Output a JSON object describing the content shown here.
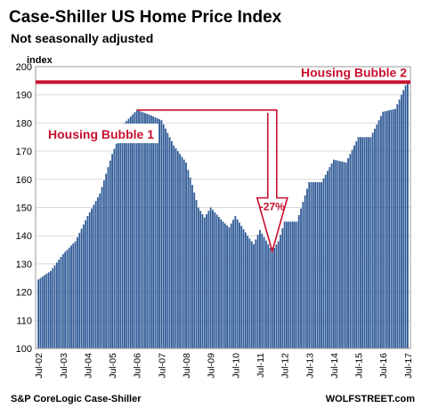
{
  "chart_data": {
    "type": "bar",
    "title": "Case-Shiller US Home Price Index",
    "subtitle": "Not seasonally adjusted",
    "ylabel": "index",
    "ylim": [
      100,
      200
    ],
    "yticks": [
      100,
      110,
      120,
      130,
      140,
      150,
      160,
      170,
      180,
      190,
      200
    ],
    "x_tick_labels": [
      "Jul-02",
      "Jul-03",
      "Jul-04",
      "Jul-05",
      "Jul-06",
      "Jul-07",
      "Jul-08",
      "Jul-09",
      "Jul-10",
      "Jul-11",
      "Jul-12",
      "Jul-13",
      "Jul-14",
      "Jul-15",
      "Jul-16",
      "Jul-17"
    ],
    "x_range": [
      "Jul-02",
      "Jul-17"
    ],
    "grid": true,
    "bar_color": "#2e5a96",
    "accent_color": "#c8102e",
    "source": "S&P CoreLogic Case-Shiller",
    "watermark": "WOLFSTREET.com",
    "keypoints": [
      {
        "date": "2002-07",
        "value": 124.5
      },
      {
        "date": "2003-01",
        "value": 127.5
      },
      {
        "date": "2003-07",
        "value": 133.5
      },
      {
        "date": "2004-01",
        "value": 138
      },
      {
        "date": "2004-07",
        "value": 147
      },
      {
        "date": "2005-01",
        "value": 155
      },
      {
        "date": "2005-07",
        "value": 169
      },
      {
        "date": "2006-01",
        "value": 180
      },
      {
        "date": "2006-07",
        "value": 184.6
      },
      {
        "date": "2007-01",
        "value": 183
      },
      {
        "date": "2007-07",
        "value": 181
      },
      {
        "date": "2008-01",
        "value": 172
      },
      {
        "date": "2008-07",
        "value": 166
      },
      {
        "date": "2009-01",
        "value": 150
      },
      {
        "date": "2009-04",
        "value": 146.5
      },
      {
        "date": "2009-07",
        "value": 150
      },
      {
        "date": "2010-01",
        "value": 145
      },
      {
        "date": "2010-04",
        "value": 143
      },
      {
        "date": "2010-07",
        "value": 147
      },
      {
        "date": "2011-01",
        "value": 140
      },
      {
        "date": "2011-04",
        "value": 137
      },
      {
        "date": "2011-07",
        "value": 142
      },
      {
        "date": "2012-01",
        "value": 134.5
      },
      {
        "date": "2012-04",
        "value": 138
      },
      {
        "date": "2012-07",
        "value": 145
      },
      {
        "date": "2013-01",
        "value": 145
      },
      {
        "date": "2013-07",
        "value": 159
      },
      {
        "date": "2014-01",
        "value": 159
      },
      {
        "date": "2014-07",
        "value": 167
      },
      {
        "date": "2015-01",
        "value": 166
      },
      {
        "date": "2015-07",
        "value": 175
      },
      {
        "date": "2016-01",
        "value": 175
      },
      {
        "date": "2016-07",
        "value": 184
      },
      {
        "date": "2017-01",
        "value": 185
      },
      {
        "date": "2017-07",
        "value": 195
      }
    ],
    "annotations": {
      "bubble1_label": "Housing Bubble 1",
      "bubble2_label": "Housing Bubble 2",
      "drop_label": "-27%",
      "bubble2_level": 194.5,
      "peak_1_date": "2006-07",
      "peak_1_value": 184.6,
      "trough_date": "2012-01",
      "trough_value": 134.5
    }
  }
}
